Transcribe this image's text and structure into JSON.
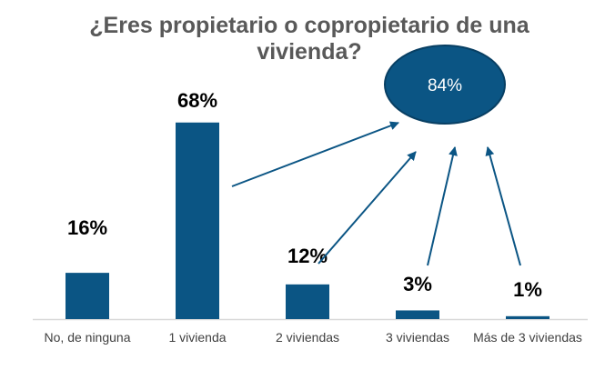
{
  "chart_data": {
    "type": "bar",
    "title": "¿Eres propietario o copropietario de una vivienda?",
    "categories": [
      "No, de ninguna",
      "1 vivienda",
      "2 viviendas",
      "3 viviendas",
      "Más de 3 viviendas"
    ],
    "values": [
      16,
      68,
      12,
      3,
      1
    ],
    "data_labels": [
      "16%",
      "68%",
      "12%",
      "3%",
      "1%"
    ],
    "annotation": {
      "text": "84%",
      "shape": "ellipse",
      "arrows_from": [
        "1 vivienda",
        "2 viviendas",
        "3 viviendas",
        "Más de 3 viviendas"
      ]
    },
    "xlabel": "",
    "ylabel": "",
    "ylim": [
      0,
      70
    ],
    "grid": false,
    "colors": {
      "bar": "#0B5584",
      "annotation": "#0B5584",
      "axis": "#D9D9D9"
    }
  }
}
